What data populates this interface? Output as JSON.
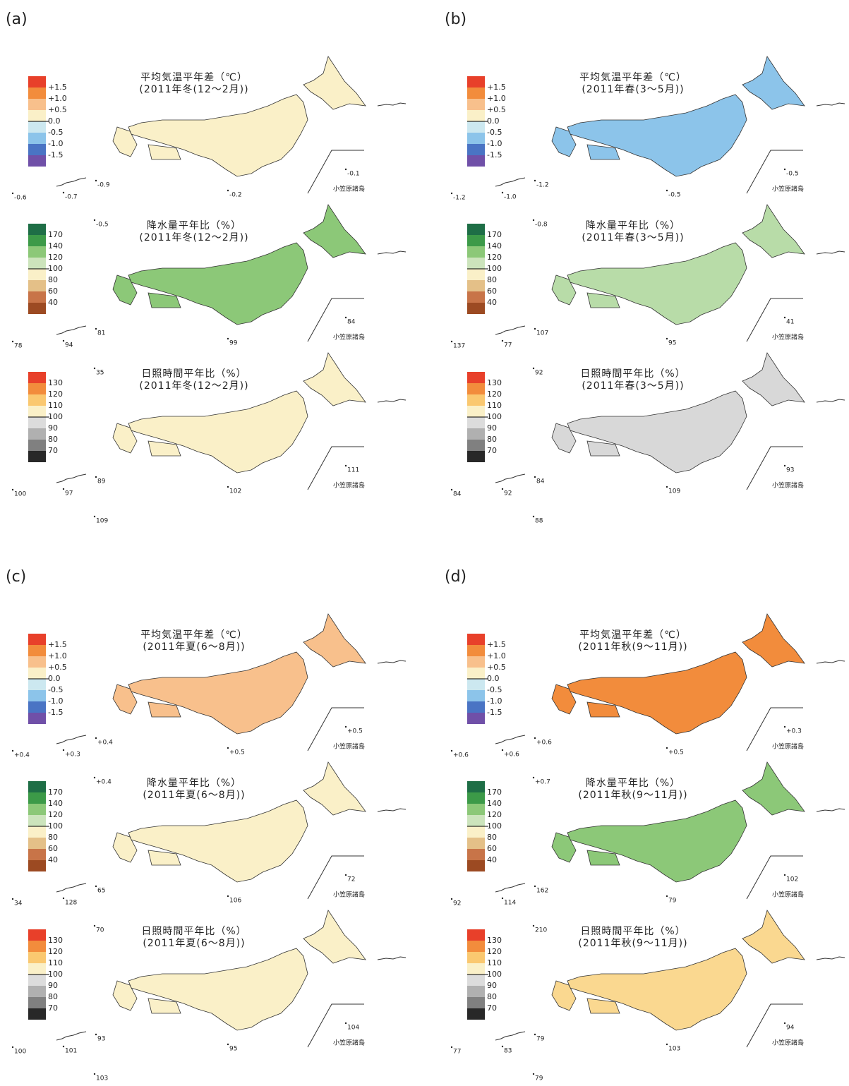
{
  "ogasawara_label": "小笠原諸島",
  "legends": [
    {
      "colors": [
        "#e8402a",
        "#f28c3c",
        "#f8c08c",
        "#faf0c8",
        "#cce8f0",
        "#8cc4ea",
        "#4a74c4",
        "#7050a8"
      ],
      "labels": [
        "+1.5",
        "+1.0",
        "+0.5",
        "0.0",
        "-0.5",
        "-1.0",
        "-1.5"
      ]
    },
    {
      "colors": [
        "#1e6e46",
        "#3c9a48",
        "#8cc878",
        "#cce4bc",
        "#faf0c8",
        "#e4c088",
        "#c87448",
        "#9c4a22"
      ],
      "labels": [
        "170",
        "140",
        "120",
        "100",
        "80",
        "60",
        "40"
      ]
    },
    {
      "colors": [
        "#e8402a",
        "#f28c3c",
        "#fac870",
        "#faf0c8",
        "#dcdcdc",
        "#b0b0b0",
        "#808080",
        "#282828"
      ],
      "labels": [
        "130",
        "120",
        "110",
        "100",
        "90",
        "80",
        "70"
      ]
    }
  ],
  "panels": [
    {
      "label": "(a)",
      "maps": [
        {
          "title": "平均気温平年差（℃）",
          "subtitle": "(2011年冬(12～2月))",
          "color": "#faf0c8",
          "stations": [
            "-0.6",
            "-0.7",
            "-0.9",
            "-0.2",
            "-0.1",
            "-0.5"
          ]
        },
        {
          "title": "降水量平年比（%）",
          "subtitle": "(2011年冬(12～2月))",
          "color": "#8cc878",
          "stations": [
            "78",
            "94",
            "81",
            "99",
            "84",
            "35"
          ]
        },
        {
          "title": "日照時間平年比（%）",
          "subtitle": "(2011年冬(12～2月))",
          "color": "#faf0c8",
          "stations": [
            "100",
            "97",
            "89",
            "102",
            "111",
            "109"
          ]
        }
      ]
    },
    {
      "label": "(b)",
      "maps": [
        {
          "title": "平均気温平年差（℃）",
          "subtitle": "(2011年春(3～5月))",
          "color": "#8cc4ea",
          "stations": [
            "-1.2",
            "-1.0",
            "-1.2",
            "-0.5",
            "-0.5",
            "-0.8"
          ]
        },
        {
          "title": "降水量平年比（%）",
          "subtitle": "(2011年春(3～5月))",
          "color": "#b8dca8",
          "stations": [
            "137",
            "77",
            "107",
            "95",
            "41",
            "92"
          ]
        },
        {
          "title": "日照時間平年比（%）",
          "subtitle": "(2011年春(3～5月))",
          "color": "#d8d8d8",
          "stations": [
            "84",
            "92",
            "84",
            "109",
            "93",
            "88"
          ]
        }
      ]
    },
    {
      "label": "(c)",
      "maps": [
        {
          "title": "平均気温平年差（℃）",
          "subtitle": "(2011年夏(6～8月))",
          "color": "#f8c08c",
          "stations": [
            "+0.4",
            "+0.3",
            "+0.4",
            "+0.5",
            "+0.5",
            "+0.4"
          ]
        },
        {
          "title": "降水量平年比（%）",
          "subtitle": "(2011年夏(6～8月))",
          "color": "#faf0c8",
          "stations": [
            "34",
            "128",
            "65",
            "106",
            "72",
            "70"
          ]
        },
        {
          "title": "日照時間平年比（%）",
          "subtitle": "(2011年夏(6～8月))",
          "color": "#faf0c8",
          "stations": [
            "100",
            "101",
            "93",
            "95",
            "104",
            "103"
          ]
        }
      ]
    },
    {
      "label": "(d)",
      "maps": [
        {
          "title": "平均気温平年差（℃）",
          "subtitle": "(2011年秋(9～11月))",
          "color": "#f28c3c",
          "stations": [
            "+0.6",
            "+0.6",
            "+0.6",
            "+0.5",
            "+0.3",
            "+0.7"
          ]
        },
        {
          "title": "降水量平年比（%）",
          "subtitle": "(2011年秋(9～11月))",
          "color": "#8cc878",
          "stations": [
            "92",
            "114",
            "162",
            "79",
            "102",
            "210"
          ]
        },
        {
          "title": "日照時間平年比（%）",
          "subtitle": "(2011年秋(9～11月))",
          "color": "#fad890",
          "stations": [
            "77",
            "83",
            "79",
            "103",
            "94",
            "79"
          ]
        }
      ]
    }
  ]
}
